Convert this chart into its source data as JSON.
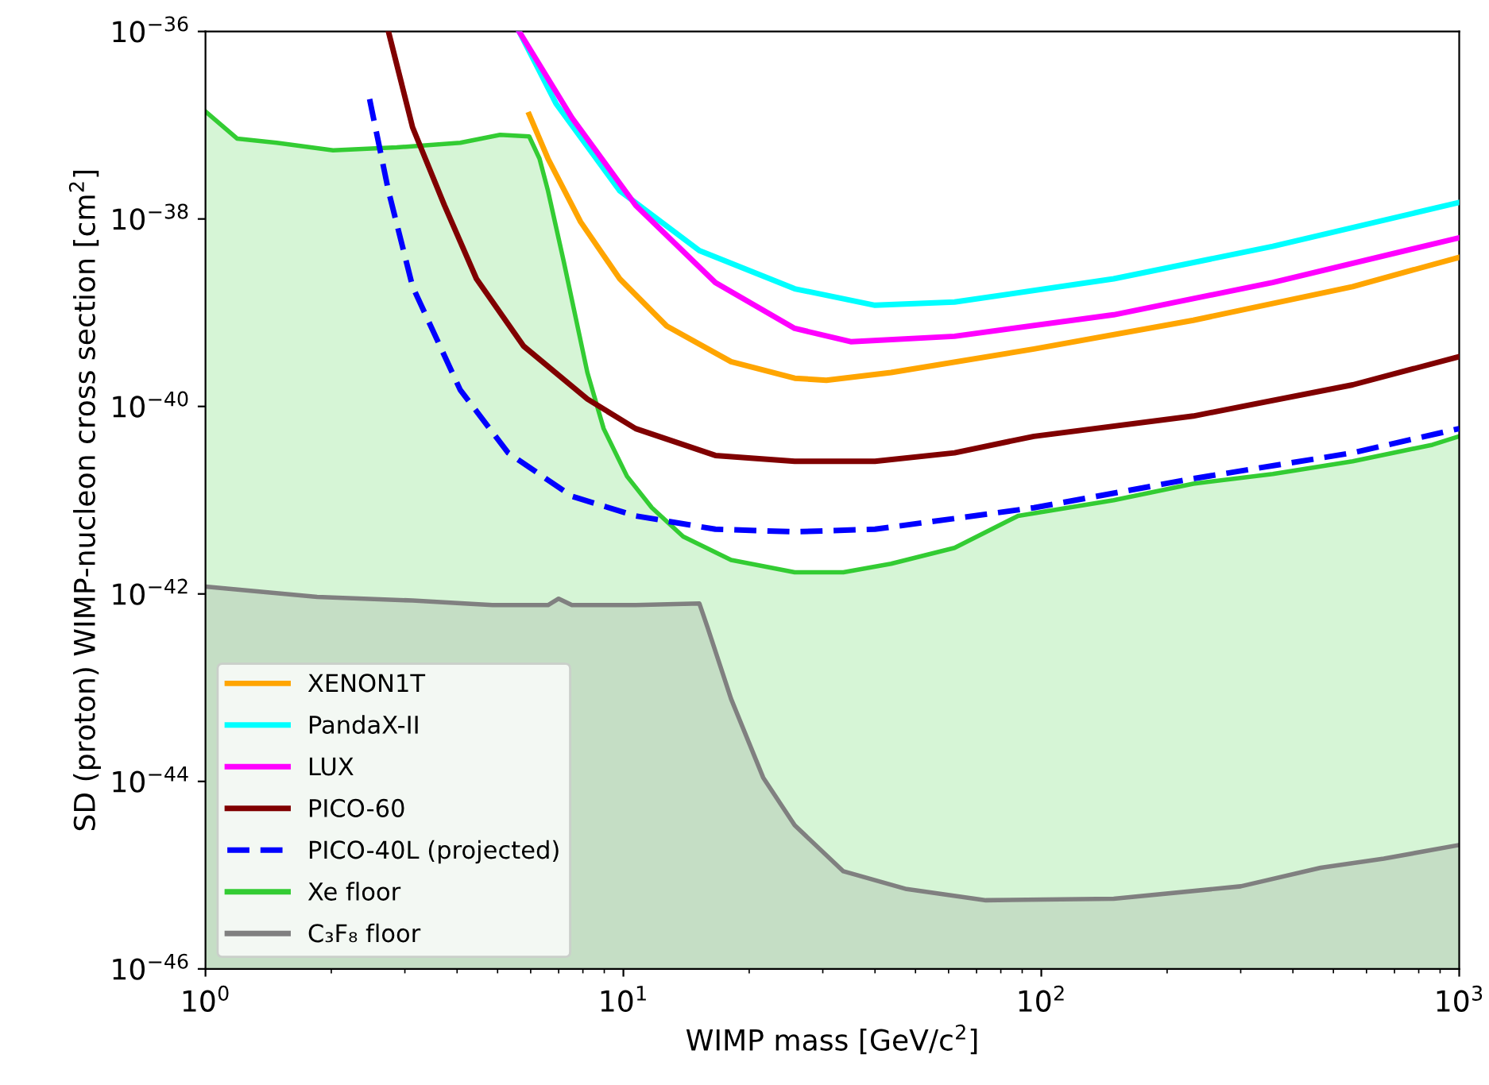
{
  "chart_data": {
    "type": "line",
    "xlabel": "WIMP mass [GeV/c$^{2}$]",
    "ylabel": "SD (proton) WIMP-nucleon cross section [cm$^{2}$]",
    "log": "xy",
    "xlim": [
      1,
      1000
    ],
    "ylim": [
      1e-46,
      1e-36
    ],
    "xticks": [
      {
        "value": 1,
        "label": "10$^{0}$"
      },
      {
        "value": 10,
        "label": "10$^{1}$"
      },
      {
        "value": 100,
        "label": "10$^{2}$"
      },
      {
        "value": 1000,
        "label": "10$^{3}$"
      }
    ],
    "yticks": [
      {
        "value": 1e-46,
        "label": "10$^{−46}$"
      },
      {
        "value": 1e-44,
        "label": "10$^{−44}$"
      },
      {
        "value": 1e-42,
        "label": "10$^{−42}$"
      },
      {
        "value": 1e-40,
        "label": "10$^{−40}$"
      },
      {
        "value": 1e-38,
        "label": "10$^{−38}$"
      },
      {
        "value": 1e-36,
        "label": "10$^{−36}$"
      }
    ],
    "grid": false,
    "legend": "bottom left",
    "series": [
      {
        "name": "XENON1T",
        "color": "#ffa500",
        "x": [
          5.95,
          6.6,
          7.9,
          9.8,
          12.7,
          18.1,
          25.7,
          30.6,
          43.7,
          96,
          231,
          556,
          1000
        ],
        "values": [
          1.3e-37,
          4.4e-38,
          9.3e-39,
          2.3e-39,
          7.2e-40,
          3e-40,
          2e-40,
          1.9e-40,
          2.3e-40,
          4.1e-40,
          8.3e-40,
          1.9e-39,
          3.9e-39
        ]
      },
      {
        "name": "PandaX-II",
        "color": "#00ffff",
        "x": [
          5.63,
          6.9,
          9.8,
          15.2,
          25.7,
          40,
          62,
          149,
          358,
          1000
        ],
        "values": [
          1e-36,
          1.7e-37,
          2e-38,
          4.6e-39,
          1.8e-39,
          1.2e-39,
          1.3e-39,
          2.3e-39,
          5.1e-39,
          1.5e-38
        ]
      },
      {
        "name": "LUX",
        "color": "#ff00ff",
        "x": [
          5.63,
          7.53,
          10.7,
          16.6,
          25.7,
          35,
          62,
          149,
          358,
          1000
        ],
        "values": [
          1e-36,
          1.2e-37,
          1.4e-38,
          2.1e-39,
          6.8e-40,
          4.9e-40,
          5.6e-40,
          9.5e-40,
          2.1e-39,
          6.3e-39
        ]
      },
      {
        "name": "PICO-60",
        "color": "#800000",
        "x": [
          2.74,
          3.13,
          3.73,
          4.45,
          5.77,
          8.2,
          10.7,
          16.6,
          25.7,
          40,
          62,
          96,
          231,
          556,
          1000
        ],
        "values": [
          1e-36,
          9.5e-38,
          1.4e-38,
          2.3e-39,
          4.4e-40,
          1.2e-40,
          5.8e-41,
          3e-41,
          2.6e-41,
          2.6e-41,
          3.2e-41,
          4.8e-41,
          7.9e-41,
          1.7e-40,
          3.4e-40
        ]
      },
      {
        "name": "PICO-40L (projected)",
        "color": "#0000ff",
        "line_style": "dashed",
        "x": [
          2.47,
          2.74,
          3.13,
          4.07,
          5.3,
          7.53,
          10.7,
          16.6,
          25.7,
          40,
          96,
          231,
          556,
          1000
        ],
        "values": [
          1.9e-37,
          2e-38,
          1.9e-39,
          1.5e-40,
          3.2e-41,
          1.1e-41,
          6.8e-42,
          4.9e-42,
          4.6e-42,
          4.9e-42,
          8.3e-42,
          1.7e-41,
          3.2e-41,
          5.8e-41
        ]
      },
      {
        "name": "Xe floor",
        "type": "area",
        "color": "#33cc33",
        "x": [
          1,
          1.19,
          1.48,
          2.02,
          2.87,
          4.07,
          5.07,
          5.95,
          6.3,
          6.6,
          7.2,
          8.2,
          8.97,
          10.2,
          11.7,
          13.9,
          18.1,
          25.7,
          33.6,
          43.7,
          62,
          88,
          149,
          231,
          358,
          556,
          863,
          1000
        ],
        "values": [
          1.4e-37,
          7.2e-38,
          6.5e-38,
          5.4e-38,
          5.8e-38,
          6.5e-38,
          7.9e-38,
          7.6e-38,
          4.4e-38,
          2e-38,
          3.5e-39,
          2.3e-40,
          5.8e-41,
          1.8e-41,
          8.3e-42,
          4.1e-42,
          2.3e-42,
          1.7e-42,
          1.7e-42,
          2.1e-42,
          3.1e-42,
          6.8e-42,
          1e-41,
          1.5e-41,
          1.9e-41,
          2.6e-41,
          3.9e-41,
          4.8e-41
        ]
      },
      {
        "name": "C₃F₈ floor",
        "type": "area",
        "color": "#808080",
        "x": [
          1,
          1.85,
          3.13,
          4.86,
          6.6,
          7.0,
          7.53,
          10.7,
          15.2,
          15.9,
          18.1,
          21.6,
          25.7,
          33.6,
          47.6,
          73.7,
          149,
          300,
          466,
          660,
          1000
        ],
        "values": [
          1.2e-42,
          9.3e-43,
          8.5e-43,
          7.6e-43,
          7.6e-43,
          8.9e-43,
          7.6e-43,
          7.6e-43,
          7.9e-43,
          4.4e-43,
          7.6e-44,
          1.1e-44,
          3.4e-45,
          1.1e-45,
          7.1e-46,
          5.4e-46,
          5.6e-46,
          7.6e-46,
          1.2e-45,
          1.5e-45,
          2.1e-45
        ]
      }
    ]
  }
}
